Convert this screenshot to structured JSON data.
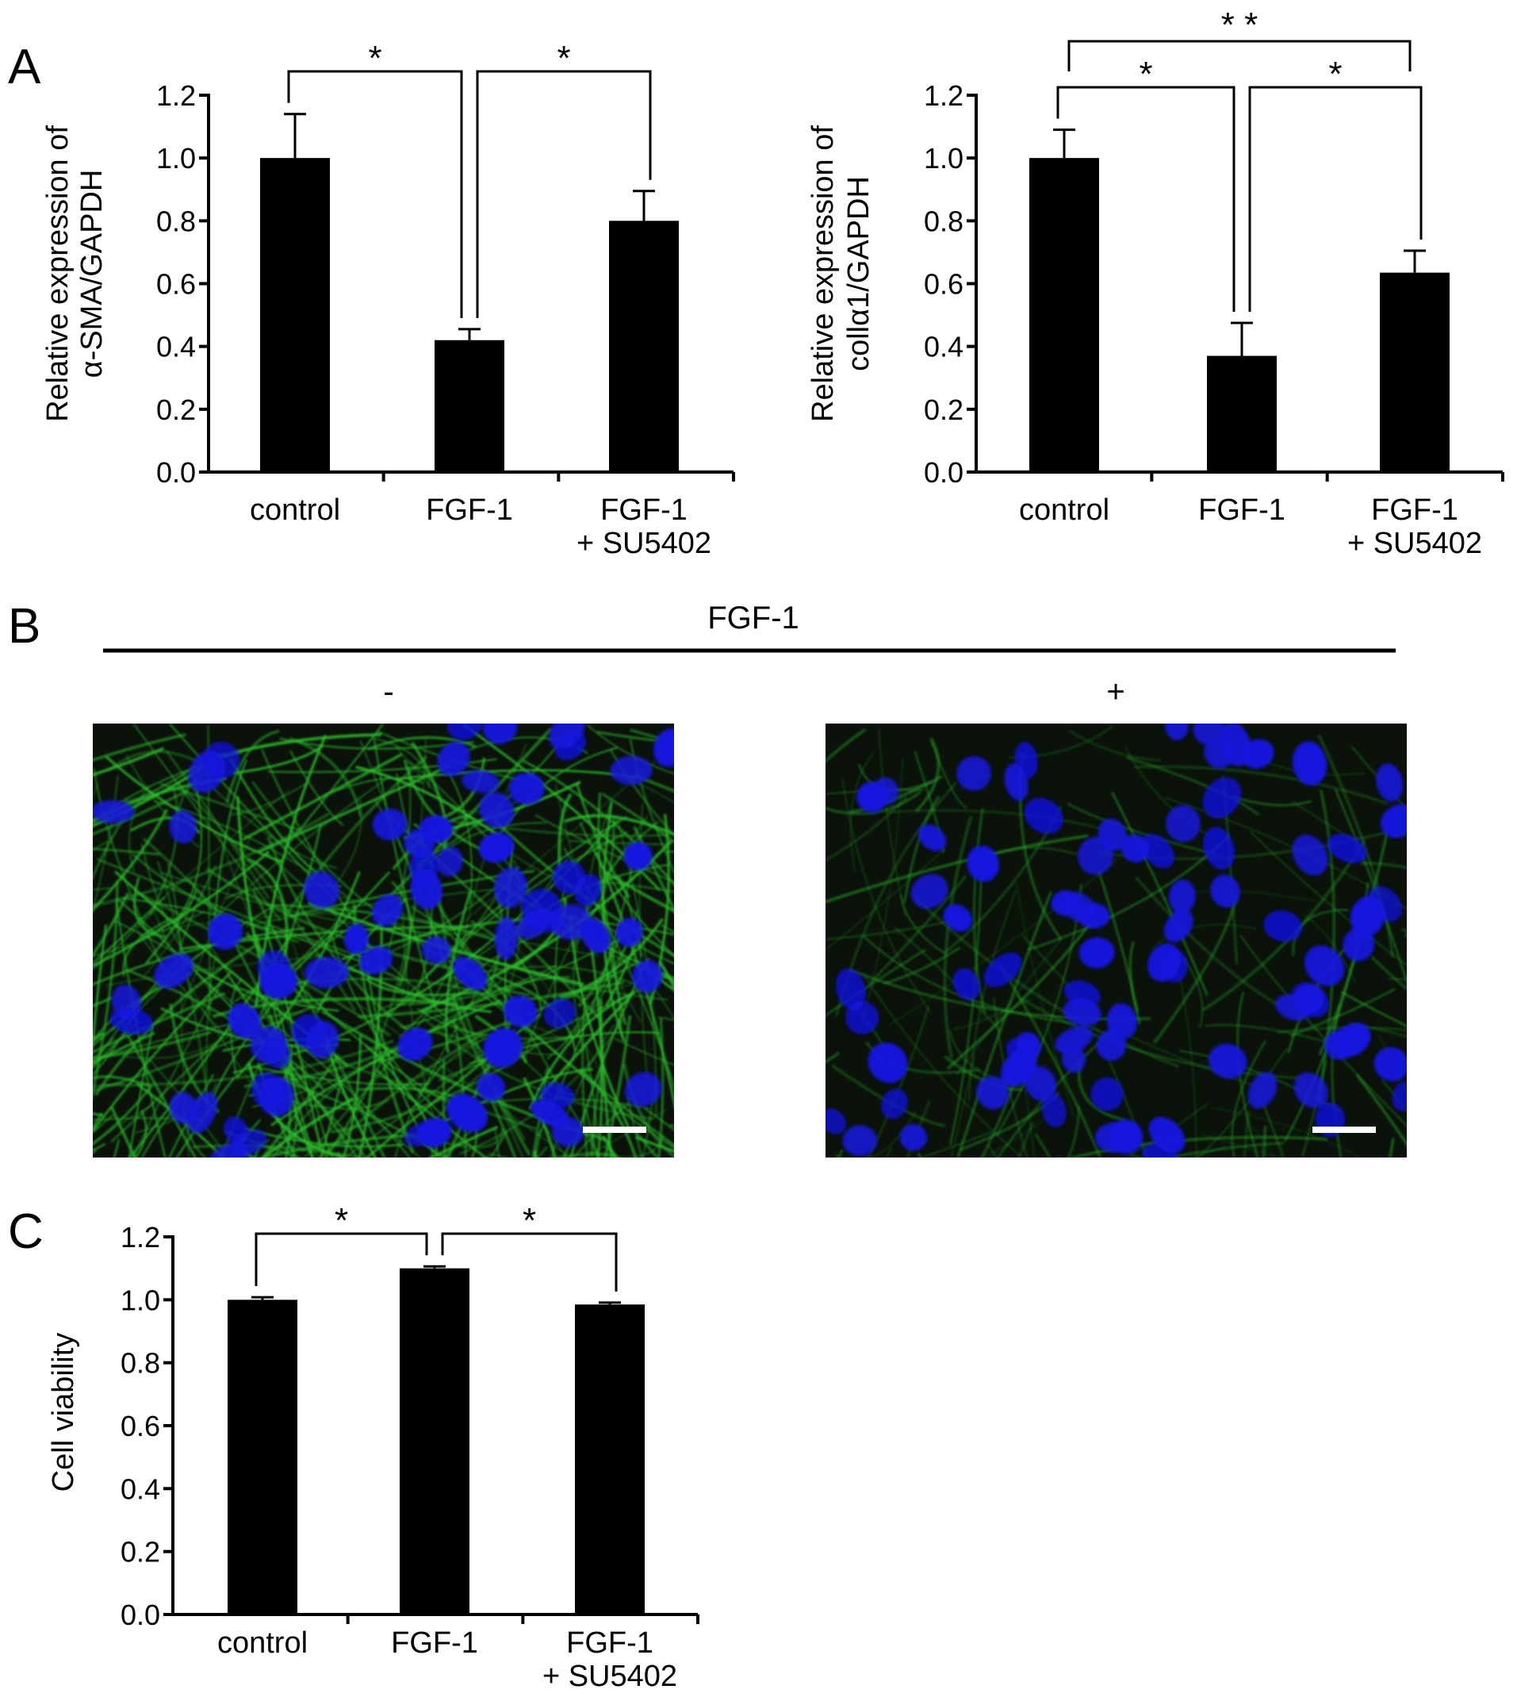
{
  "panels": {
    "A": {
      "label": "A"
    },
    "B": {
      "label": "B",
      "treatment_header": "FGF-1",
      "conditions": [
        "-",
        "+"
      ]
    },
    "C": {
      "label": "C"
    }
  },
  "micrograph_colors": {
    "background": "#0a120a",
    "actin": "#2ec02e",
    "nuclei": "#1414e0",
    "scale_bar": "#ffffff"
  },
  "chart_data": [
    {
      "type": "bar",
      "panel": "A-left",
      "categories": [
        "control",
        "FGF-1",
        "FGF-1\n+ SU5402"
      ],
      "values": [
        1.0,
        0.42,
        0.8
      ],
      "errors": [
        0.14,
        0.035,
        0.095
      ],
      "ylabel": "Relative expression of\nα-SMA/GAPDH",
      "ylim": [
        0,
        1.2
      ],
      "yticks": [
        "0.0",
        "0.2",
        "0.4",
        "0.6",
        "0.8",
        "1.0",
        "1.2"
      ],
      "significance": [
        {
          "from": 0,
          "to": 1,
          "label": "*"
        },
        {
          "from": 1,
          "to": 2,
          "label": "*"
        }
      ]
    },
    {
      "type": "bar",
      "panel": "A-right",
      "categories": [
        "control",
        "FGF-1",
        "FGF-1\n+ SU5402"
      ],
      "values": [
        1.0,
        0.37,
        0.635
      ],
      "errors": [
        0.09,
        0.105,
        0.07
      ],
      "ylabel": "Relative expression of\ncollα1/GAPDH",
      "ylim": [
        0,
        1.2
      ],
      "yticks": [
        "0.0",
        "0.2",
        "0.4",
        "0.6",
        "0.8",
        "1.0",
        "1.2"
      ],
      "significance": [
        {
          "from": 0,
          "to": 1,
          "label": "*"
        },
        {
          "from": 1,
          "to": 2,
          "label": "*"
        },
        {
          "from": 0,
          "to": 2,
          "label": "* *"
        }
      ]
    },
    {
      "type": "bar",
      "panel": "C",
      "categories": [
        "control",
        "FGF-1",
        "FGF-1\n+ SU5402"
      ],
      "values": [
        1.0,
        1.1,
        0.985
      ],
      "errors": [
        0.008,
        0.006,
        0.006
      ],
      "ylabel": "Cell viability",
      "ylim": [
        0,
        1.2
      ],
      "yticks": [
        "0.0",
        "0.2",
        "0.4",
        "0.6",
        "0.8",
        "1.0",
        "1.2"
      ],
      "significance": [
        {
          "from": 0,
          "to": 1,
          "label": "*"
        },
        {
          "from": 1,
          "to": 2,
          "label": "*"
        }
      ]
    }
  ]
}
